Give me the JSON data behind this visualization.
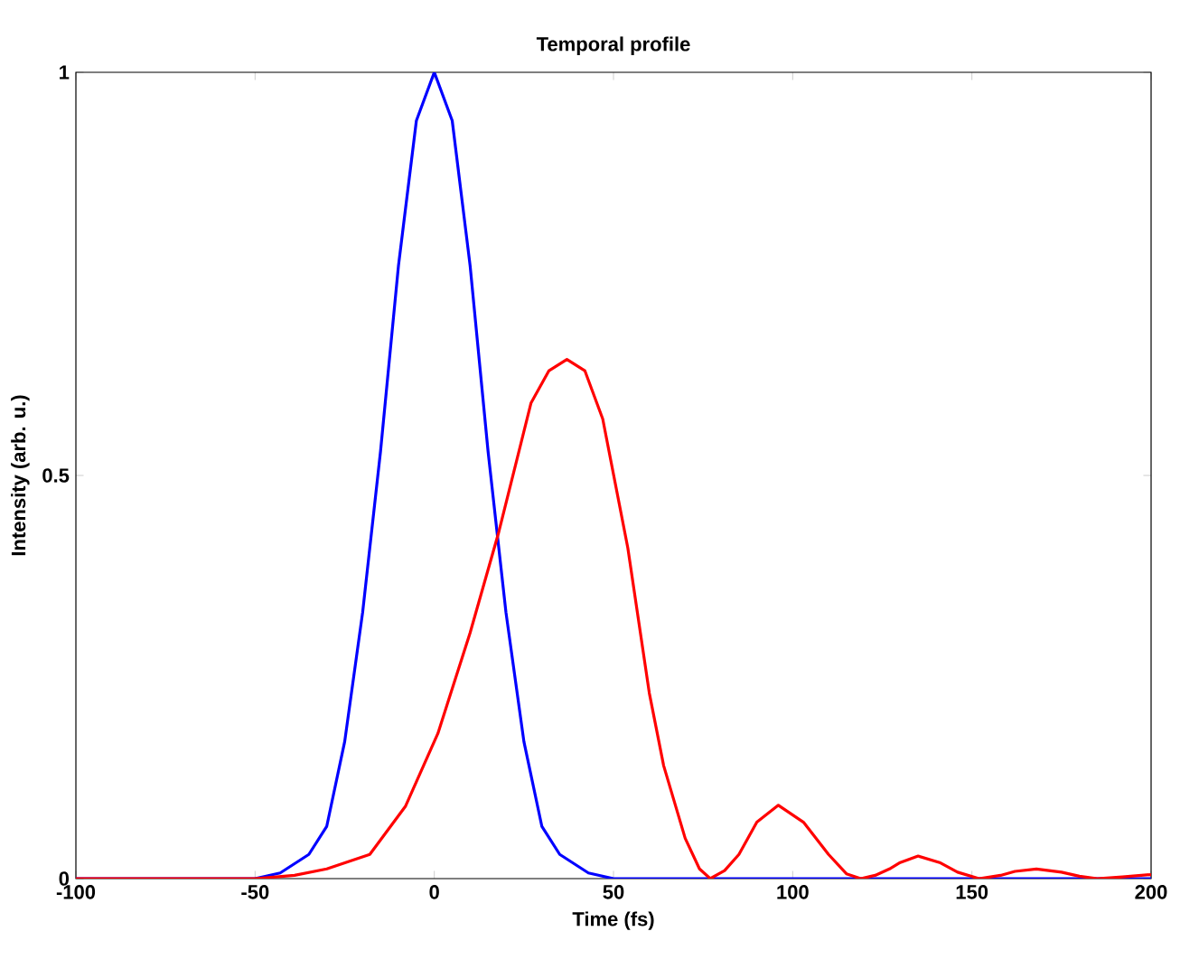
{
  "chart_data": {
    "type": "line",
    "title": "Temporal profile",
    "xlabel": "Time (fs)",
    "ylabel": "Intensity (arb. u.)",
    "xlim": [
      -100,
      200
    ],
    "ylim": [
      0,
      1
    ],
    "xticks": [
      -100,
      -50,
      0,
      50,
      100,
      150,
      200
    ],
    "yticks": [
      0,
      0.5,
      1
    ],
    "grid": false,
    "series": [
      {
        "color": "#0000ff",
        "x": [
          -100,
          -50,
          -43,
          -35,
          -30,
          -25,
          -20,
          -15,
          -10,
          -5,
          0,
          5,
          10,
          15,
          20,
          25,
          30,
          35,
          43,
          50,
          200
        ],
        "values": [
          0,
          0,
          0.007,
          0.03,
          0.065,
          0.17,
          0.33,
          0.53,
          0.76,
          0.94,
          1,
          0.94,
          0.76,
          0.53,
          0.33,
          0.17,
          0.065,
          0.03,
          0.007,
          0,
          0
        ]
      },
      {
        "color": "#ff0000",
        "x": [
          -100,
          -50,
          -39,
          -30,
          -18,
          -8,
          1,
          10,
          18,
          27,
          32,
          37,
          42,
          47,
          54,
          60,
          64,
          70,
          74,
          77,
          81,
          85,
          90,
          96,
          103,
          110,
          115,
          119,
          123,
          127,
          130,
          135,
          141,
          146,
          152,
          158,
          162,
          168,
          175,
          180,
          185,
          192,
          200
        ],
        "values": [
          0,
          0,
          0.004,
          0.012,
          0.03,
          0.09,
          0.18,
          0.305,
          0.43,
          0.59,
          0.63,
          0.644,
          0.63,
          0.57,
          0.41,
          0.23,
          0.14,
          0.05,
          0.012,
          0,
          0.01,
          0.03,
          0.07,
          0.091,
          0.07,
          0.03,
          0.006,
          0,
          0.004,
          0.012,
          0.02,
          0.028,
          0.02,
          0.008,
          0,
          0.004,
          0.009,
          0.012,
          0.008,
          0.003,
          0,
          0.002,
          0.005
        ]
      }
    ]
  }
}
